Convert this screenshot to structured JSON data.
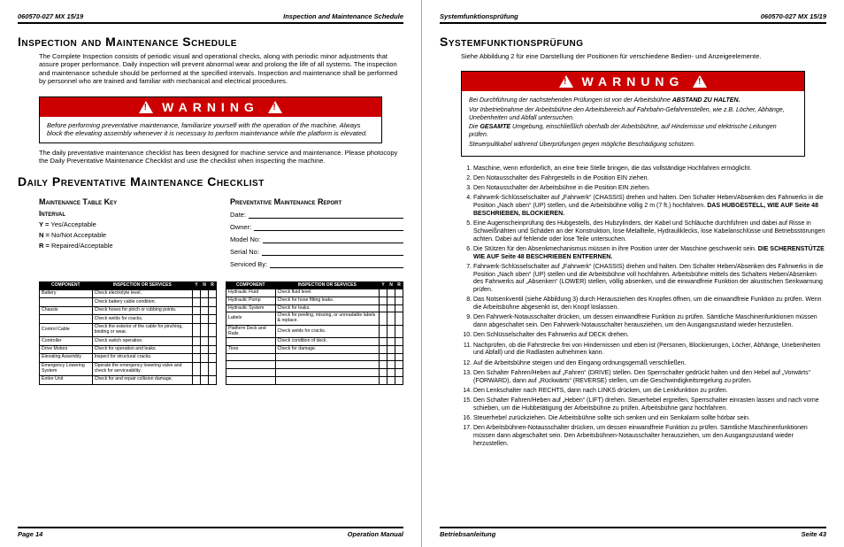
{
  "left": {
    "header": {
      "doc": "060570-027 MX 15/19",
      "title": "Inspection and Maintenance Schedule"
    },
    "sec1_title": "Inspection and Maintenance Schedule",
    "sec1_body": "The Complete Inspection consists of periodic visual and operational checks, along with periodic minor adjustments that assure proper performance. Daily inspection will prevent abnormal wear and prolong the life of all systems. The inspection and maintenance schedule should be performed at the specified intervals. Inspection and maintenance shall be performed by personnel who are trained and familiar with mechanical and electrical procedures.",
    "warning_label": "WARNING",
    "warning_body": "Before performing preventative maintenance, familiarize yourself with the operation of the machine. Always block the elevating assembly whenever it is necessary to perform maintenance while the platform is elevated.",
    "sec1_post": "The daily preventative maintenance checklist has been designed for machine service and maintenance. Please photocopy the Daily Preventative Maintenance Checklist and use the checklist when inspecting the machine.",
    "sec2_title": "Daily Preventative Maintenance Checklist",
    "key_title": "Maintenance Table Key",
    "interval_title": "Interval",
    "key_y": "Y = ",
    "key_y_txt": "Yes/Acceptable",
    "key_n": "N = ",
    "key_n_txt": "No/Not Acceptable",
    "key_r": "R = ",
    "key_r_txt": "Repaired/Acceptable",
    "report_title": "Preventative Maintenance Report",
    "report_fields": [
      "Date:",
      "Owner:",
      "Model No:",
      "Serial No:",
      "Serviced By:"
    ],
    "table_headers": [
      "COMPONENT",
      "INSPECTION OR SERVICES",
      "Y",
      "N",
      "R"
    ],
    "table1": [
      [
        "Battery",
        "Check electrolyte level."
      ],
      [
        "",
        "Check battery cable condition."
      ],
      [
        "Chassis",
        "Check hoses for pinch or rubbing points."
      ],
      [
        "",
        "Check welds for cracks."
      ],
      [
        "Control Cable",
        "Check the exterior of the cable for pinching, binding or wear."
      ],
      [
        "Controller",
        "Check switch operation."
      ],
      [
        "Drive Motors",
        "Check for operation and leaks."
      ],
      [
        "Elevating Assembly",
        "Inspect for structural cracks."
      ],
      [
        "Emergency Lowering System",
        "Operate the emergency lowering valve and check for serviceability."
      ],
      [
        "Entire Unit",
        "Check for and repair collision damage."
      ]
    ],
    "table2": [
      [
        "Hydraulic Fluid",
        "Check fluid level."
      ],
      [
        "Hydraulic Pump",
        "Check for hose fitting leaks."
      ],
      [
        "Hydraulic System",
        "Check for leaks."
      ],
      [
        "Labels",
        "Check for peeling, missing, or unreadable labels & replace."
      ],
      [
        "Platform Deck and Rails",
        "Check welds for cracks."
      ],
      [
        "",
        "Check condition of deck."
      ],
      [
        "Tires",
        "Check for damage."
      ]
    ],
    "footer": {
      "page": "Page 14",
      "manual": "Operation Manual"
    }
  },
  "right": {
    "header": {
      "title": "Systemfunktionsprüfung",
      "doc": "060570-027 MX 15/19"
    },
    "sec_title": "Systemfunktionsprüfung",
    "intro": "Siehe Abbildung 2 für eine Darstellung der Positionen für verschiedene Bedien- und Anzeigeelemente.",
    "warning_label": "WARNUNG",
    "warn_body": [
      "Bei Durchführung der nachstehenden Prüfungen ist von der Arbeitsbühne <b>ABSTAND ZU HALTEN.</b>",
      "Vor Inbetriebnahme der Arbeitsbühne den Arbeitsbereich auf Fahrbahn-Gefahrenstellen, wie z.B. Löcher, Abhänge, Unebenheiten und Abfall untersuchen.",
      "Die <b>GESAMTE</b> Umgebung, einschließlich oberhalb der Arbeitsbühne, auf Hindernisse und elektrische Leitungen prüfen.",
      "Steuerpultkabel während Überprüfungen gegen mögliche Beschädigung schützen."
    ],
    "steps": [
      "Maschine, wenn erforderlich, an eine freie Stelle bringen, die das vollständige Hochfahren ermöglicht.",
      "Den Notausschalter des Fahrgestells in die Position EIN ziehen.",
      "Den Notausschalter der Arbeitsbühne in die Position EIN ziehen.",
      "Fahrwerk-Schlüsselschalter auf „Fahrwerk“ (CHASSIS) drehen und halten. Den Schalter Heben/Absenken des Fahrwerks in die Position „Nach oben“ (UP) stellen, und die Arbeitsbühne völlig 2 m (7 ft.) hochfahren. <b>DAS HUBGESTELL, WIE AUF Seite 48 BESCHRIEBEN, BLOCKIEREN.</b>",
      "Eine Augenscheinprüfung des Hubgestells, des Hubzylinders, der Kabel und Schläuche durchführen und dabei auf Risse in Schweißnähten und Schäden an der Konstruktion, lose Metallteile, Hydrauliklecks, lose Kabelanschlüsse und Betriebsstörungen achten. Dabei auf fehlende oder lose Teile untersuchen.",
      "Die Stützen für den Absenkmechanismus müssen in ihre Position unter der Maschine geschwenkt sein. <b>DIE SCHERENSTÜTZE WIE AUF Seite 48 BESCHRIEBEN ENTFERNEN.</b>",
      "Fahrwerk-Schlüsselschalter auf „Fahrwerk“ (CHASSIS) drehen und halten. Den Schalter Heben/Absenken des Fahrwerks in die Position „Nach oben“ (UP) stellen und die Arbeitsbühne voll hochfahren. Arbeitsbühne mittels des Schalters Heben/Absenken des Fahrwerks auf „Absenken“ (LOWER) stellen, völlig absenken, und die einwandfreie Funktion der akustischen Senkwarnung prüfen.",
      "Das Notsenkventil (siehe Abbildung 3) durch Herausziehen des Knopfes öffnen, um die einwandfreie Funktion zu prüfen. Wenn die Arbeitsbühne abgesenkt ist, den Knopf loslassen.",
      "Den Fahrwerk-Notausschalter drücken, um dessen einwandfreie Funktion zu prüfen. Sämtliche Maschinenfunktionen müssen dann abgeschaltet sein. Den Fahrwerk-Notausschalter herausziehen, um den Ausgangszustand wieder herzustellen.",
      "Den Schlüsselschalter des Fahrwerks auf DECK drehen.",
      "Nachprüfen, ob die Fahrstrecke frei von Hindernissen und eben ist (Personen, Blockierungen, Löcher, Abhänge, Unebenheiten und Abfall) und die Radlasten aufnehmen kann.",
      "Auf die Arbeitsbühne steigen und den Eingang ordnungsgemäß verschließen.",
      "Den Schalter Fahren/Heben auf „Fahren“ (DRIVE) stellen. Den Sperrschalter gedrückt halten und den Hebel auf „Vorwärts“ (FORWARD), dann auf „Rückwärts“ (REVERSE) stellen, um die Geschwindigkeitsregelung zu prüfen.",
      "Den Lenkschalter nach RECHTS, dann nach LINKS drücken, um die Lenkfunktion zu prüfen.",
      "Den Schalter Fahren/Heben auf „Heben“ (LIFT) drehen. Steuerhebel ergreifen, Sperrschalter einrasten lassen und nach vorne schieben, um die Hubbetätigung der Arbeitsbühne zu prüfen. Arbeitsbühne ganz hochfahren.",
      "Steuerhebel zurückziehen. Die Arbeitsbühne sollte sich senken und ein Senkalarm sollte hörbar sein.",
      "Den Arbeitsbühnen-Notausschalter drücken, um dessen einwandfreie Funktion zu prüfen. Sämtliche Maschinenfunktionen müssen dann abgeschaltet sein. Den Arbeitsbühnen-Notausschalter herausziehen, um den Ausgangszustand wieder herzustellen."
    ],
    "footer": {
      "manual": "Betriebsanleitung",
      "page": "Seite 43"
    }
  }
}
